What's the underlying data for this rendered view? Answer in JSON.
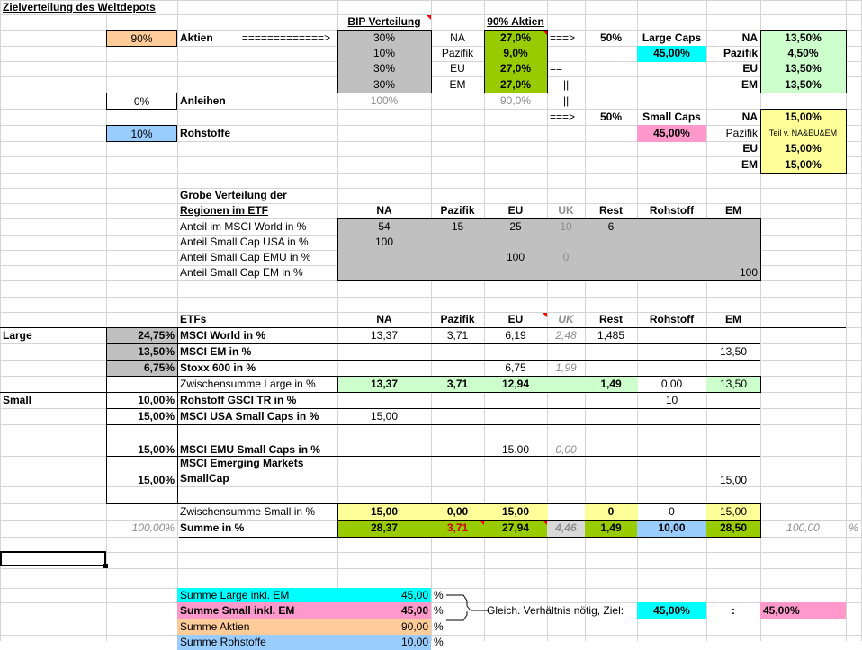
{
  "title": "Zielverteilung des Weltdepots",
  "colors": {
    "grid": "#d4d4d4",
    "orange": "#ffcc99",
    "lightblue": "#99ccff",
    "grey_fill": "#c0c0c0",
    "green": "#99cc00",
    "light_green": "#ccffcc",
    "cyan": "#00ffff",
    "light_yellow": "#ffff99",
    "pink": "#ff99cc",
    "red_text": "#cc0000",
    "grey_text": "#8c8c8c"
  },
  "top": {
    "bip_header": "BIP Verteilung",
    "aktien_header": "90% Aktien",
    "aktien_pct": "90%",
    "aktien_label": "Aktien",
    "arrow_long": "=============>",
    "anleihen_pct": "0%",
    "anleihen_label": "Anleihen",
    "rohstoffe_pct": "10%",
    "rohstoffe_label": "Rohstoffe",
    "bip": [
      "30%",
      "10%",
      "30%",
      "30%"
    ],
    "bip_total": "100%",
    "regions": [
      "NA",
      "Pazifik",
      "EU",
      "EM"
    ],
    "aktien": [
      "27,0%",
      "9,0%",
      "27,0%",
      "27,0%"
    ],
    "aktien_total": "90,0%",
    "arrow_large": "===>",
    "pct_large": "50%",
    "label_large": "Large Caps",
    "large_total": "45,00%",
    "eq": "==",
    "bar1": "||",
    "bar2": "||",
    "arrow_small": "===>",
    "pct_small": "50%",
    "label_small": "Small Caps",
    "small_total": "45,00%",
    "large_regions": [
      "NA",
      "Pazifik",
      "EU",
      "EM"
    ],
    "large_values": [
      "13,50%",
      "4,50%",
      "13,50%",
      "13,50%"
    ],
    "small_regions": [
      "NA",
      "Pazifik",
      "EU",
      "EM"
    ],
    "small_values": [
      "15,00%",
      "Teil v. NA&EU&EM",
      "15,00%",
      "15,00%"
    ]
  },
  "grobe": {
    "heading1": "Grobe Verteilung der",
    "heading2": "Regionen im ETF",
    "columns": [
      "NA",
      "Pazifik",
      "EU",
      "UK",
      "Rest",
      "Rohstoff",
      "EM"
    ],
    "rows": [
      {
        "label": "Anteil im MSCI World in %",
        "na": "54",
        "pazifik": "15",
        "eu": "25",
        "uk": "10",
        "rest": "6",
        "rohstoff": "",
        "em": ""
      },
      {
        "label": "Anteil Small Cap USA in %",
        "na": "100",
        "pazifik": "",
        "eu": "",
        "uk": "",
        "rest": "",
        "rohstoff": "",
        "em": ""
      },
      {
        "label": "Anteil Small Cap EMU in %",
        "na": "",
        "pazifik": "",
        "eu": "100",
        "uk": "0",
        "rest": "",
        "rohstoff": "",
        "em": ""
      },
      {
        "label": "Anteil Small Cap EM in %",
        "na": "",
        "pazifik": "",
        "eu": "",
        "uk": "",
        "rest": "",
        "rohstoff": "",
        "em": "100"
      }
    ]
  },
  "etfs": {
    "header": "ETFs",
    "columns": [
      "NA",
      "Pazifik",
      "EU",
      "UK",
      "Rest",
      "Rohstoff",
      "EM"
    ],
    "group_large": "Large",
    "group_small": "Small",
    "world": {
      "pct": "24,75%",
      "name": "MSCI World in %",
      "na": "13,37",
      "pazifik": "3,71",
      "eu": "6,19",
      "uk": "2,48",
      "rest": "1,485"
    },
    "em": {
      "pct": "13,50%",
      "name": "MSCI EM in %",
      "em": "13,50"
    },
    "stoxx": {
      "pct": "6,75%",
      "name": "Stoxx 600 in %",
      "eu": "6,75",
      "uk": "1,99"
    },
    "zw_large": {
      "label": "Zwischensumme Large in %",
      "na": "13,37",
      "pazifik": "3,71",
      "eu": "12,94",
      "rest": "1,49",
      "rohstoff": "0,00",
      "em": "13,50"
    },
    "gsci": {
      "pct": "10,00%",
      "name": "Rohstoff GSCI TR in %",
      "rohstoff": "10"
    },
    "usa_small": {
      "pct": "15,00%",
      "name": "MSCI USA Small Caps in %",
      "na": "15,00"
    },
    "emu_small": {
      "pct": "15,00%",
      "name": "MSCI EMU Small Caps in %",
      "eu": "15,00",
      "uk": "0,00"
    },
    "em_small": {
      "pct": "15,00%",
      "name1": "MSCI Emerging Markets",
      "name2": "SmallCap",
      "em": "15,00"
    },
    "zw_small": {
      "label": "Zwischensumme Small in %",
      "na": "15,00",
      "pazifik": "0,00",
      "eu": "15,00",
      "rest": "0",
      "rohstoff": "0",
      "em": "15,00"
    },
    "summe": {
      "pct": "100,00%",
      "label": "Summe in %",
      "na": "28,37",
      "pazifik": "3,71",
      "eu": "27,94",
      "uk": "4,46",
      "rest": "1,49",
      "rohstoff": "10,00",
      "em": "28,50",
      "total": "100,00",
      "unit": "%"
    }
  },
  "bottom": {
    "large_label": "Summe Large inkl. EM",
    "large_value": "45,00",
    "small_label": "Summe Small inkl. EM",
    "small_value": "45,00",
    "unit": "%",
    "note": "Gleich. Verhältnis nötig, Ziel:",
    "ziel_large": "45,00%",
    "colon": ":",
    "ziel_small": "45,00%",
    "aktien_label": "Summe Aktien",
    "aktien_value": "90,00",
    "rohstoffe_label": "Summe Rohstoffe",
    "rohstoffe_value": "10,00"
  }
}
